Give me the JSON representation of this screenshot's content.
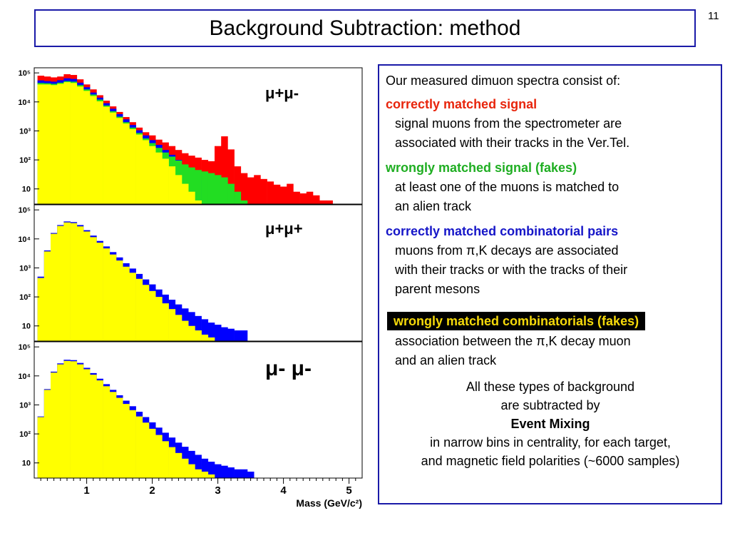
{
  "slide": {
    "title": "Background Subtraction: method",
    "number": "11"
  },
  "text_panel": {
    "intro": "Our measured dimuon spectra consist of:",
    "sections": [
      {
        "title": "correctly matched signal",
        "body": [
          "signal muons from the spectrometer are",
          "associated with their tracks in the Ver.Tel."
        ],
        "color": "#e8250c"
      },
      {
        "title": "wrongly matched signal (fakes)",
        "body": [
          "at least one of the muons is matched to",
          "an alien track"
        ],
        "color": "#1fae22"
      },
      {
        "title": "correctly matched combinatorial pairs",
        "body": [
          "muons from π,K decays are associated",
          "with their tracks or with the tracks of their",
          "parent mesons"
        ],
        "color": "#1616c8"
      }
    ],
    "highlight_title": "wrongly matched combinatorials (fakes)",
    "highlight_body": [
      "association between the π,K decay muon",
      "and an alien track"
    ],
    "summary": [
      "All these types of background",
      "are subtracted by",
      "Event Mixing",
      "in narrow bins in centrality, for each target,",
      "and magnetic field polarities (~6000 samples)"
    ]
  },
  "chart_data": [
    {
      "type": "area",
      "label": "μ+μ-",
      "log_y": true,
      "xlim": [
        0.2,
        5.2
      ],
      "ylim": [
        3,
        150000
      ],
      "yticks": [
        {
          "v": 10,
          "t": "10"
        },
        {
          "v": 100,
          "t": "10²"
        },
        {
          "v": 1000,
          "t": "10³"
        },
        {
          "v": 10000,
          "t": "10⁴"
        },
        {
          "v": 100000,
          "t": "10⁵"
        }
      ],
      "bin_width": 0.1,
      "stack": [
        {
          "name": "total",
          "color": "#ff0000",
          "x": [
            0.3,
            0.4,
            0.5,
            0.6,
            0.7,
            0.8,
            0.9,
            1.0,
            1.1,
            1.2,
            1.3,
            1.4,
            1.5,
            1.6,
            1.7,
            1.8,
            1.9,
            2.0,
            2.1,
            2.2,
            2.3,
            2.4,
            2.5,
            2.6,
            2.7,
            2.8,
            2.9,
            3.0,
            3.1,
            3.2,
            3.3,
            3.4,
            3.5,
            3.6,
            3.7,
            3.8,
            3.9,
            4.0,
            4.1,
            4.2,
            4.3,
            4.4,
            4.5,
            4.6,
            4.7,
            4.8
          ],
          "y": [
            80000,
            75000,
            70000,
            75000,
            90000,
            85000,
            60000,
            40000,
            27000,
            17000,
            11000,
            7000,
            4500,
            3000,
            2000,
            1300,
            900,
            700,
            500,
            400,
            300,
            220,
            170,
            140,
            120,
            100,
            90,
            300,
            650,
            230,
            60,
            35,
            25,
            30,
            22,
            18,
            14,
            12,
            15,
            8,
            7,
            8,
            6,
            4,
            4,
            3
          ]
        },
        {
          "name": "blue",
          "color": "#0000ff",
          "x": [
            0.3,
            0.4,
            0.5,
            0.6,
            0.7,
            0.8,
            0.9,
            1.0,
            1.1,
            1.2,
            1.3,
            1.4,
            1.5,
            1.6,
            1.7,
            1.8,
            1.9,
            2.0,
            2.1,
            2.2,
            2.3,
            2.4,
            2.5,
            2.6,
            2.7,
            2.8,
            2.9,
            3.0,
            3.1,
            3.2,
            3.3
          ],
          "y": [
            55000,
            52000,
            50000,
            56000,
            65000,
            62000,
            46000,
            32000,
            21000,
            14000,
            9000,
            5800,
            3800,
            2500,
            1600,
            1050,
            700,
            480,
            330,
            220,
            150,
            100,
            65,
            45,
            30,
            20,
            14,
            10,
            8,
            5,
            3
          ]
        },
        {
          "name": "green",
          "color": "#22dd22",
          "x": [
            0.3,
            0.4,
            0.5,
            0.6,
            0.7,
            0.8,
            0.9,
            1.0,
            1.1,
            1.2,
            1.3,
            1.4,
            1.5,
            1.6,
            1.7,
            1.8,
            1.9,
            2.0,
            2.1,
            2.2,
            2.3,
            2.4,
            2.5,
            2.6,
            2.7,
            2.8,
            2.9,
            3.0,
            3.1,
            3.2,
            3.3,
            3.4
          ],
          "y": [
            45000,
            44000,
            42000,
            46000,
            52000,
            50000,
            38000,
            27000,
            18000,
            12000,
            7500,
            4800,
            3100,
            2000,
            1300,
            850,
            550,
            380,
            260,
            180,
            130,
            95,
            70,
            55,
            45,
            40,
            35,
            30,
            25,
            15,
            8,
            4
          ]
        },
        {
          "name": "yellow",
          "color": "#ffff00",
          "x": [
            0.3,
            0.4,
            0.5,
            0.6,
            0.7,
            0.8,
            0.9,
            1.0,
            1.1,
            1.2,
            1.3,
            1.4,
            1.5,
            1.6,
            1.7,
            1.8,
            1.9,
            2.0,
            2.1,
            2.2,
            2.3,
            2.4,
            2.5,
            2.6,
            2.7
          ],
          "y": [
            40000,
            40000,
            38000,
            42000,
            48000,
            45000,
            34000,
            24000,
            16000,
            10500,
            6800,
            4300,
            2800,
            1800,
            1150,
            750,
            480,
            300,
            180,
            110,
            60,
            30,
            15,
            8,
            4
          ]
        }
      ]
    },
    {
      "type": "area",
      "label": "μ+μ+",
      "log_y": true,
      "xlim": [
        0.2,
        5.2
      ],
      "ylim": [
        3,
        150000
      ],
      "yticks": [
        {
          "v": 10,
          "t": "10"
        },
        {
          "v": 100,
          "t": "10²"
        },
        {
          "v": 1000,
          "t": "10³"
        },
        {
          "v": 10000,
          "t": "10⁴"
        },
        {
          "v": 100000,
          "t": "10⁵"
        }
      ],
      "bin_width": 0.1,
      "stack": [
        {
          "name": "blue",
          "color": "#0000ff",
          "x": [
            0.3,
            0.4,
            0.5,
            0.6,
            0.7,
            0.8,
            0.9,
            1.0,
            1.1,
            1.2,
            1.3,
            1.4,
            1.5,
            1.6,
            1.7,
            1.8,
            1.9,
            2.0,
            2.1,
            2.2,
            2.3,
            2.4,
            2.5,
            2.6,
            2.7,
            2.8,
            2.9,
            3.0,
            3.1,
            3.2,
            3.3,
            3.4
          ],
          "y": [
            500,
            4000,
            16000,
            30000,
            40000,
            38000,
            30000,
            20000,
            13000,
            8500,
            5500,
            3500,
            2300,
            1450,
            950,
            620,
            400,
            270,
            180,
            120,
            80,
            55,
            40,
            30,
            22,
            17,
            13,
            11,
            9,
            8,
            7,
            7
          ]
        },
        {
          "name": "yellow",
          "color": "#ffff00",
          "x": [
            0.3,
            0.4,
            0.5,
            0.6,
            0.7,
            0.8,
            0.9,
            1.0,
            1.1,
            1.2,
            1.3,
            1.4,
            1.5,
            1.6,
            1.7,
            1.8,
            1.9,
            2.0,
            2.1,
            2.2,
            2.3,
            2.4,
            2.5,
            2.6,
            2.7,
            2.8,
            2.9,
            3.0,
            3.1,
            3.2
          ],
          "y": [
            450,
            3700,
            15000,
            28000,
            37000,
            35000,
            27000,
            18000,
            11500,
            7400,
            4700,
            2900,
            1800,
            1100,
            680,
            420,
            260,
            160,
            100,
            60,
            38,
            24,
            15,
            10,
            7,
            5,
            4,
            3,
            3,
            3
          ]
        }
      ]
    },
    {
      "type": "area",
      "label": "μ- μ-",
      "log_y": true,
      "xlim": [
        0.2,
        5.2
      ],
      "ylim": [
        3,
        150000
      ],
      "yticks": [
        {
          "v": 10,
          "t": "10"
        },
        {
          "v": 100,
          "t": "10²"
        },
        {
          "v": 1000,
          "t": "10³"
        },
        {
          "v": 10000,
          "t": "10⁴"
        },
        {
          "v": 100000,
          "t": "10⁵"
        }
      ],
      "xticks": [
        1,
        2,
        3,
        4,
        5
      ],
      "xlabel": "Mass (GeV/c²)",
      "bin_width": 0.1,
      "stack": [
        {
          "name": "blue",
          "color": "#0000ff",
          "x": [
            0.3,
            0.4,
            0.5,
            0.6,
            0.7,
            0.8,
            0.9,
            1.0,
            1.1,
            1.2,
            1.3,
            1.4,
            1.5,
            1.6,
            1.7,
            1.8,
            1.9,
            2.0,
            2.1,
            2.2,
            2.3,
            2.4,
            2.5,
            2.6,
            2.7,
            2.8,
            2.9,
            3.0,
            3.1,
            3.2,
            3.3,
            3.4,
            3.5
          ],
          "y": [
            400,
            3500,
            14000,
            27000,
            36000,
            35000,
            28000,
            19000,
            12500,
            8000,
            5200,
            3300,
            2150,
            1400,
            900,
            580,
            380,
            250,
            165,
            110,
            75,
            50,
            36,
            26,
            19,
            14,
            11,
            9,
            8,
            7,
            6,
            6,
            5
          ]
        },
        {
          "name": "yellow",
          "color": "#ffff00",
          "x": [
            0.3,
            0.4,
            0.5,
            0.6,
            0.7,
            0.8,
            0.9,
            1.0,
            1.1,
            1.2,
            1.3,
            1.4,
            1.5,
            1.6,
            1.7,
            1.8,
            1.9,
            2.0,
            2.1,
            2.2,
            2.3,
            2.4,
            2.5,
            2.6,
            2.7,
            2.8,
            2.9,
            3.0,
            3.1
          ],
          "y": [
            380,
            3300,
            13000,
            25000,
            33000,
            32000,
            25000,
            17000,
            11000,
            7000,
            4400,
            2800,
            1750,
            1080,
            660,
            400,
            245,
            150,
            92,
            56,
            35,
            22,
            14,
            9,
            6,
            5,
            4,
            3,
            3
          ]
        }
      ]
    }
  ]
}
